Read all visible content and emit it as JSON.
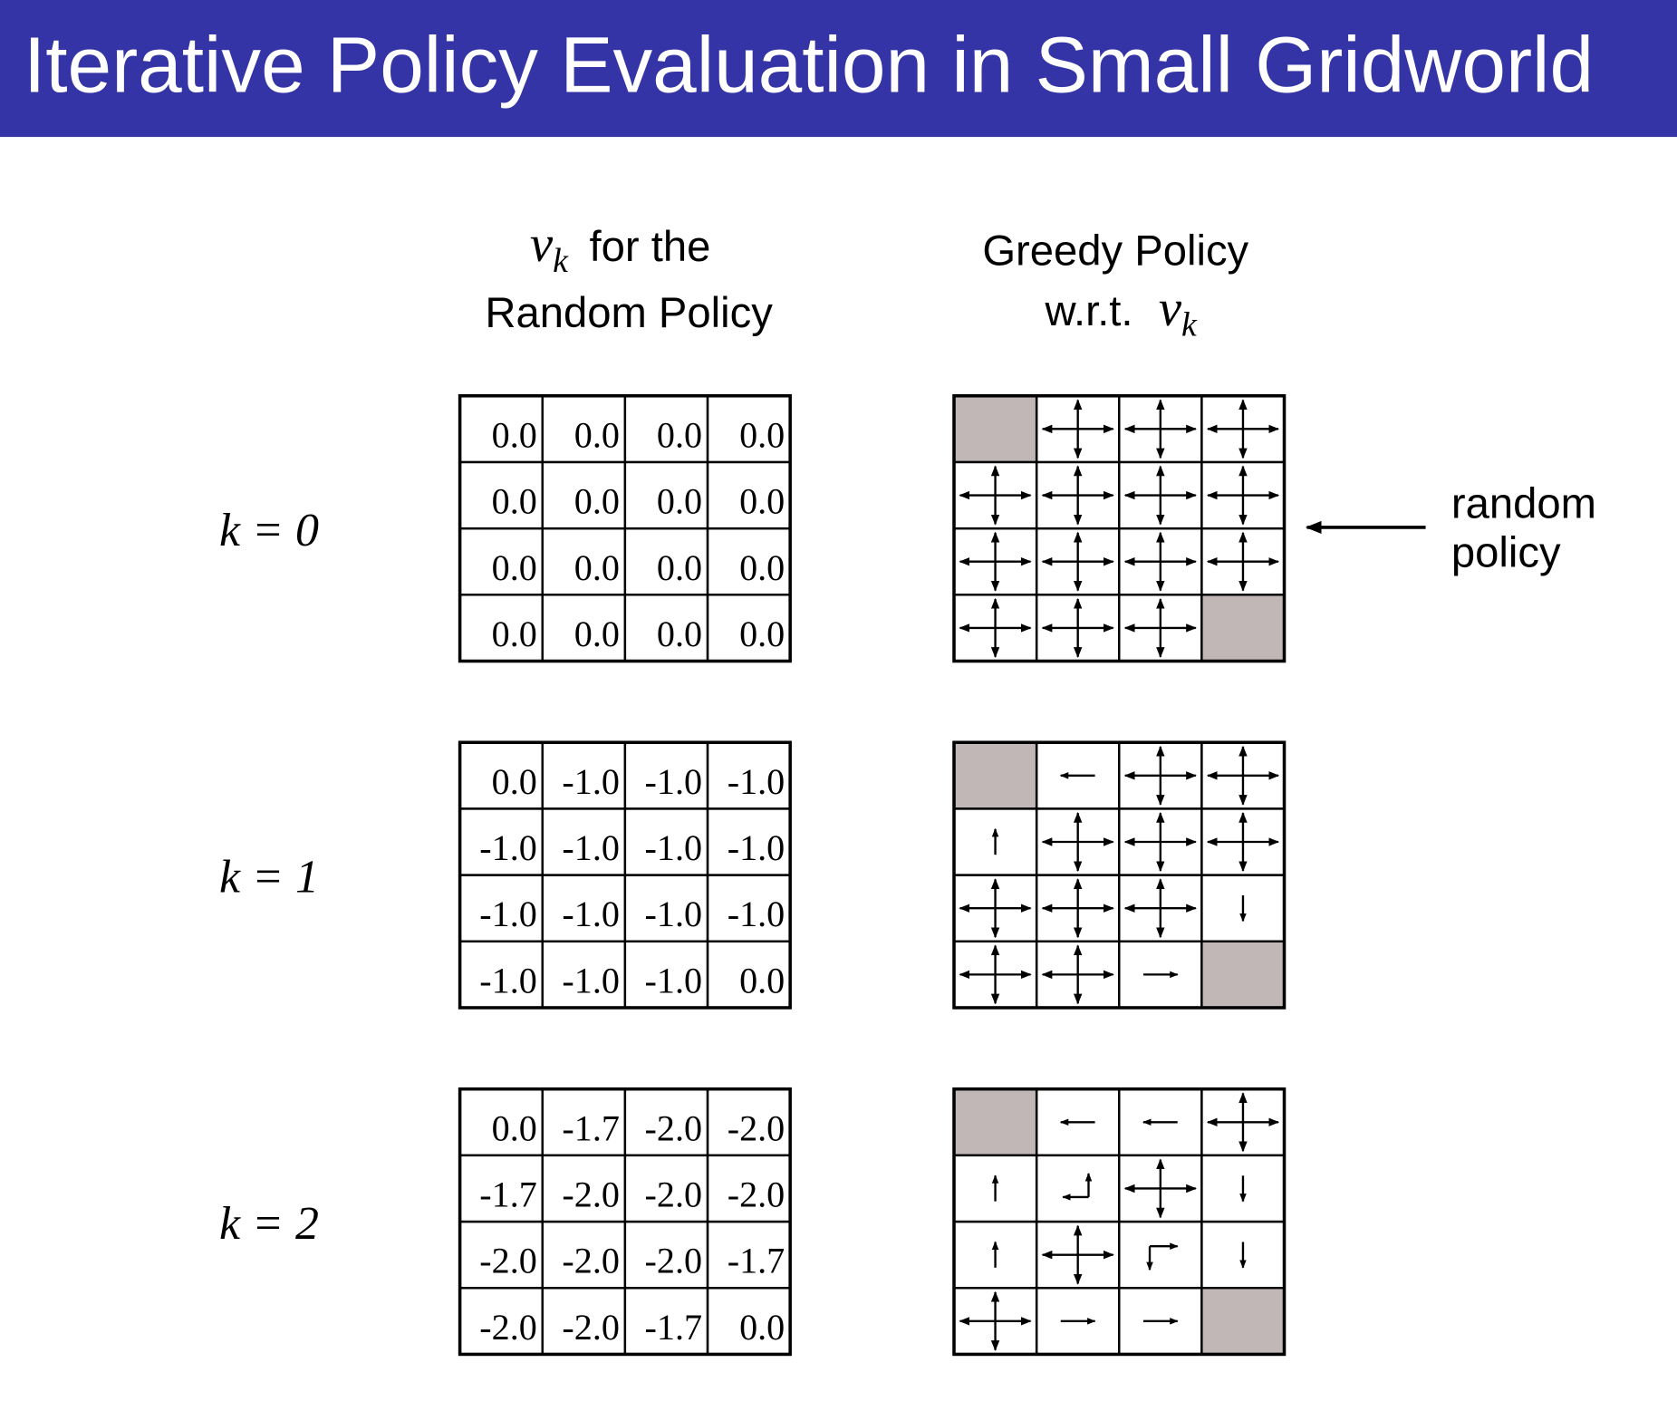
{
  "title": "Iterative Policy Evaluation in Small Gridworld",
  "value_header": {
    "symbol": "v",
    "subscript": "k",
    "text": "for the",
    "line2": "Random Policy"
  },
  "policy_header": {
    "line1": "Greedy Policy",
    "text": "w.r.t.",
    "symbol": "v",
    "subscript": "k"
  },
  "annotation": [
    "random",
    "policy"
  ],
  "rows": [
    {
      "label": "k = 0",
      "values": [
        [
          "0.0",
          "0.0",
          "0.0",
          "0.0"
        ],
        [
          "0.0",
          "0.0",
          "0.0",
          "0.0"
        ],
        [
          "0.0",
          "0.0",
          "0.0",
          "0.0"
        ],
        [
          "0.0",
          "0.0",
          "0.0",
          "0.0"
        ]
      ]
    },
    {
      "label": "k = 1",
      "values": [
        [
          "0.0",
          "-1.0",
          "-1.0",
          "-1.0"
        ],
        [
          "-1.0",
          "-1.0",
          "-1.0",
          "-1.0"
        ],
        [
          "-1.0",
          "-1.0",
          "-1.0",
          "-1.0"
        ],
        [
          "-1.0",
          "-1.0",
          "-1.0",
          "0.0"
        ]
      ]
    },
    {
      "label": "k = 2",
      "values": [
        [
          "0.0",
          "-1.7",
          "-2.0",
          "-2.0"
        ],
        [
          "-1.7",
          "-2.0",
          "-2.0",
          "-2.0"
        ],
        [
          "-2.0",
          "-2.0",
          "-2.0",
          "-1.7"
        ],
        [
          "-2.0",
          "-2.0",
          "-1.7",
          "0.0"
        ]
      ]
    }
  ]
}
